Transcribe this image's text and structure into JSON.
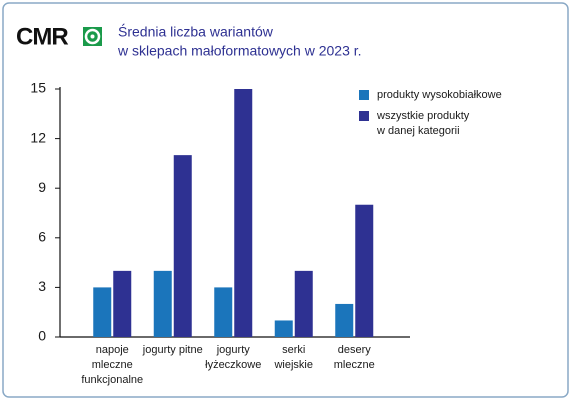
{
  "chart_data": {
    "type": "bar",
    "logo": "CMR",
    "title": [
      "Średnia liczba wariantów",
      "w sklepach małoformatowych w 2023 r."
    ],
    "categories": [
      [
        "napoje",
        "mleczne",
        "funkcjonalne"
      ],
      [
        "jogurty pitne"
      ],
      [
        "jogurty",
        "łyżeczkowe"
      ],
      [
        "serki",
        "wiejskie"
      ],
      [
        "desery",
        "mleczne"
      ]
    ],
    "series": [
      {
        "name": [
          "produkty wysokobiałkowe"
        ],
        "color": "#1b75bb",
        "values": [
          3,
          4,
          3,
          1,
          2
        ]
      },
      {
        "name": [
          "wszystkie produkty",
          "w danej kategorii"
        ],
        "color": "#2e3192",
        "values": [
          4,
          11,
          15,
          4,
          8
        ]
      }
    ],
    "ylim": [
      0,
      15
    ],
    "yticks": [
      0,
      3,
      6,
      9,
      12,
      15
    ],
    "legend": "top-right"
  }
}
